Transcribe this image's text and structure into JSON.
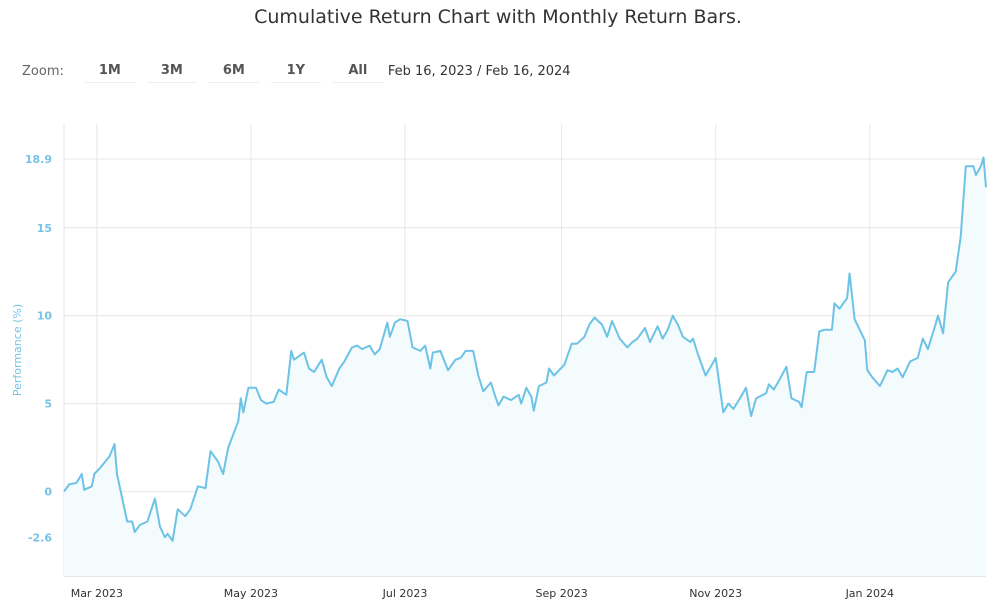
{
  "title": "Cumulative Return Chart with Monthly Return Bars.",
  "toolbar": {
    "zoom_label": "Zoom:",
    "buttons": [
      "1M",
      "3M",
      "6M",
      "1Y",
      "All"
    ],
    "range_text": "Feb 16, 2023 / Feb 16, 2024"
  },
  "colors": {
    "line": "#6cc3e6",
    "area": "#f4fbfd",
    "grid": "#e6e6e6"
  },
  "chart_data": {
    "type": "area",
    "ylabel": "Performance (%)",
    "ylim": [
      -4.8,
      20.9
    ],
    "y_ticks": [
      -2.6,
      0,
      5,
      10,
      15,
      18.9
    ],
    "x_ticks": [
      {
        "date": "2023-03-01",
        "label": "Mar 2023"
      },
      {
        "date": "2023-05-01",
        "label": "May 2023"
      },
      {
        "date": "2023-07-01",
        "label": "Jul 2023"
      },
      {
        "date": "2023-09-01",
        "label": "Sep 2023"
      },
      {
        "date": "2023-11-01",
        "label": "Nov 2023"
      },
      {
        "date": "2024-01-01",
        "label": "Jan 2024"
      }
    ],
    "xlim": [
      "2023-02-16",
      "2024-02-16"
    ],
    "grid": true,
    "series": [
      {
        "points": [
          [
            "2023-02-16",
            0.0
          ],
          [
            "2023-02-18",
            0.4
          ],
          [
            "2023-02-21",
            0.5
          ],
          [
            "2023-02-23",
            1.0
          ],
          [
            "2023-02-24",
            0.1
          ],
          [
            "2023-02-27",
            0.3
          ],
          [
            "2023-02-28",
            1.0
          ],
          [
            "2023-03-02",
            1.3
          ],
          [
            "2023-03-06",
            2.0
          ],
          [
            "2023-03-08",
            2.7
          ],
          [
            "2023-03-09",
            1.0
          ],
          [
            "2023-03-13",
            -1.7
          ],
          [
            "2023-03-15",
            -1.7
          ],
          [
            "2023-03-16",
            -2.3
          ],
          [
            "2023-03-18",
            -1.9
          ],
          [
            "2023-03-21",
            -1.7
          ],
          [
            "2023-03-24",
            -0.4
          ],
          [
            "2023-03-26",
            -2.0
          ],
          [
            "2023-03-28",
            -2.6
          ],
          [
            "2023-03-29",
            -2.4
          ],
          [
            "2023-03-31",
            -2.8
          ],
          [
            "2023-04-02",
            -1.0
          ],
          [
            "2023-04-05",
            -1.4
          ],
          [
            "2023-04-07",
            -1.0
          ],
          [
            "2023-04-10",
            0.3
          ],
          [
            "2023-04-13",
            0.2
          ],
          [
            "2023-04-15",
            2.3
          ],
          [
            "2023-04-18",
            1.7
          ],
          [
            "2023-04-20",
            1.0
          ],
          [
            "2023-04-22",
            2.5
          ],
          [
            "2023-04-26",
            4.0
          ],
          [
            "2023-04-27",
            5.3
          ],
          [
            "2023-04-28",
            4.5
          ],
          [
            "2023-04-30",
            5.9
          ],
          [
            "2023-05-03",
            5.9
          ],
          [
            "2023-05-05",
            5.2
          ],
          [
            "2023-05-07",
            5.0
          ],
          [
            "2023-05-10",
            5.1
          ],
          [
            "2023-05-12",
            5.8
          ],
          [
            "2023-05-15",
            5.5
          ],
          [
            "2023-05-17",
            8.0
          ],
          [
            "2023-05-18",
            7.5
          ],
          [
            "2023-05-22",
            7.9
          ],
          [
            "2023-05-24",
            7.0
          ],
          [
            "2023-05-26",
            6.8
          ],
          [
            "2023-05-29",
            7.5
          ],
          [
            "2023-05-31",
            6.5
          ],
          [
            "2023-06-02",
            6.0
          ],
          [
            "2023-06-05",
            7.0
          ],
          [
            "2023-06-07",
            7.4
          ],
          [
            "2023-06-10",
            8.2
          ],
          [
            "2023-06-12",
            8.3
          ],
          [
            "2023-06-14",
            8.1
          ],
          [
            "2023-06-17",
            8.3
          ],
          [
            "2023-06-19",
            7.8
          ],
          [
            "2023-06-21",
            8.1
          ],
          [
            "2023-06-24",
            9.6
          ],
          [
            "2023-06-25",
            8.8
          ],
          [
            "2023-06-27",
            9.6
          ],
          [
            "2023-06-29",
            9.8
          ],
          [
            "2023-07-02",
            9.7
          ],
          [
            "2023-07-04",
            8.2
          ],
          [
            "2023-07-07",
            8.0
          ],
          [
            "2023-07-09",
            8.3
          ],
          [
            "2023-07-11",
            7.0
          ],
          [
            "2023-07-12",
            7.9
          ],
          [
            "2023-07-15",
            8.0
          ],
          [
            "2023-07-18",
            6.9
          ],
          [
            "2023-07-21",
            7.5
          ],
          [
            "2023-07-23",
            7.6
          ],
          [
            "2023-07-25",
            8.0
          ],
          [
            "2023-07-28",
            8.0
          ],
          [
            "2023-07-30",
            6.6
          ],
          [
            "2023-08-01",
            5.7
          ],
          [
            "2023-08-04",
            6.2
          ],
          [
            "2023-08-06",
            5.3
          ],
          [
            "2023-08-07",
            4.9
          ],
          [
            "2023-08-09",
            5.4
          ],
          [
            "2023-08-12",
            5.2
          ],
          [
            "2023-08-15",
            5.5
          ],
          [
            "2023-08-16",
            5.0
          ],
          [
            "2023-08-18",
            5.9
          ],
          [
            "2023-08-20",
            5.4
          ],
          [
            "2023-08-21",
            4.6
          ],
          [
            "2023-08-23",
            6.0
          ],
          [
            "2023-08-26",
            6.2
          ],
          [
            "2023-08-27",
            7.0
          ],
          [
            "2023-08-29",
            6.6
          ],
          [
            "2023-09-02",
            7.2
          ],
          [
            "2023-09-05",
            8.4
          ],
          [
            "2023-09-07",
            8.4
          ],
          [
            "2023-09-10",
            8.8
          ],
          [
            "2023-09-12",
            9.5
          ],
          [
            "2023-09-14",
            9.9
          ],
          [
            "2023-09-17",
            9.5
          ],
          [
            "2023-09-19",
            8.8
          ],
          [
            "2023-09-21",
            9.7
          ],
          [
            "2023-09-24",
            8.7
          ],
          [
            "2023-09-27",
            8.2
          ],
          [
            "2023-09-29",
            8.5
          ],
          [
            "2023-10-01",
            8.7
          ],
          [
            "2023-10-04",
            9.3
          ],
          [
            "2023-10-06",
            8.5
          ],
          [
            "2023-10-09",
            9.4
          ],
          [
            "2023-10-11",
            8.7
          ],
          [
            "2023-10-13",
            9.2
          ],
          [
            "2023-10-15",
            10.0
          ],
          [
            "2023-10-17",
            9.5
          ],
          [
            "2023-10-19",
            8.8
          ],
          [
            "2023-10-22",
            8.5
          ],
          [
            "2023-10-23",
            8.7
          ],
          [
            "2023-10-25",
            7.8
          ],
          [
            "2023-10-28",
            6.6
          ],
          [
            "2023-10-30",
            7.1
          ],
          [
            "2023-11-01",
            7.6
          ],
          [
            "2023-11-04",
            4.5
          ],
          [
            "2023-11-06",
            5.0
          ],
          [
            "2023-11-08",
            4.7
          ],
          [
            "2023-11-11",
            5.4
          ],
          [
            "2023-11-13",
            5.9
          ],
          [
            "2023-11-15",
            4.3
          ],
          [
            "2023-11-17",
            5.3
          ],
          [
            "2023-11-21",
            5.6
          ],
          [
            "2023-11-22",
            6.1
          ],
          [
            "2023-11-24",
            5.8
          ],
          [
            "2023-11-26",
            6.3
          ],
          [
            "2023-11-29",
            7.1
          ],
          [
            "2023-12-01",
            5.3
          ],
          [
            "2023-12-04",
            5.1
          ],
          [
            "2023-12-05",
            4.8
          ],
          [
            "2023-12-07",
            6.8
          ],
          [
            "2023-12-10",
            6.8
          ],
          [
            "2023-12-12",
            9.1
          ],
          [
            "2023-12-14",
            9.2
          ],
          [
            "2023-12-17",
            9.2
          ],
          [
            "2023-12-18",
            10.7
          ],
          [
            "2023-12-20",
            10.4
          ],
          [
            "2023-12-23",
            11.0
          ],
          [
            "2023-12-24",
            12.4
          ],
          [
            "2023-12-26",
            9.8
          ],
          [
            "2023-12-30",
            8.6
          ],
          [
            "2023-12-31",
            6.9
          ],
          [
            "2024-01-02",
            6.5
          ],
          [
            "2024-01-05",
            6.0
          ],
          [
            "2024-01-08",
            6.9
          ],
          [
            "2024-01-10",
            6.8
          ],
          [
            "2024-01-12",
            7.0
          ],
          [
            "2024-01-14",
            6.5
          ],
          [
            "2024-01-17",
            7.4
          ],
          [
            "2024-01-20",
            7.6
          ],
          [
            "2024-01-22",
            8.7
          ],
          [
            "2024-01-24",
            8.1
          ],
          [
            "2024-01-27",
            9.5
          ],
          [
            "2024-01-28",
            10.0
          ],
          [
            "2024-01-30",
            9.0
          ],
          [
            "2024-02-01",
            11.9
          ],
          [
            "2024-02-04",
            12.5
          ],
          [
            "2024-02-06",
            14.5
          ],
          [
            "2024-02-08",
            18.5
          ],
          [
            "2024-02-11",
            18.5
          ],
          [
            "2024-02-12",
            18.0
          ],
          [
            "2024-02-14",
            18.5
          ],
          [
            "2024-02-15",
            19.0
          ],
          [
            "2024-02-16",
            17.3
          ]
        ]
      }
    ]
  }
}
